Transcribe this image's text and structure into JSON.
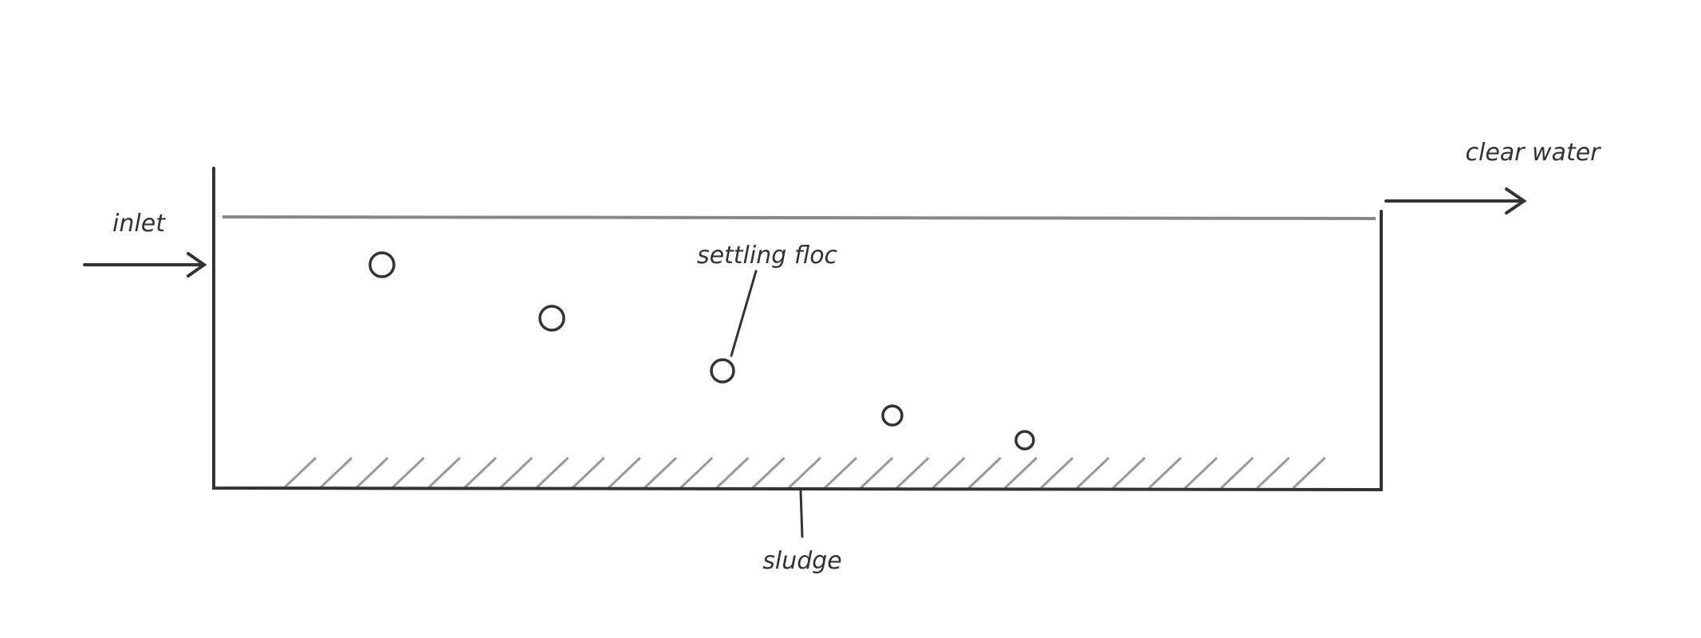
{
  "labels": {
    "inlet": "inlet",
    "outlet": "clear water",
    "floc": "settling floc",
    "sludge": "sludge"
  }
}
